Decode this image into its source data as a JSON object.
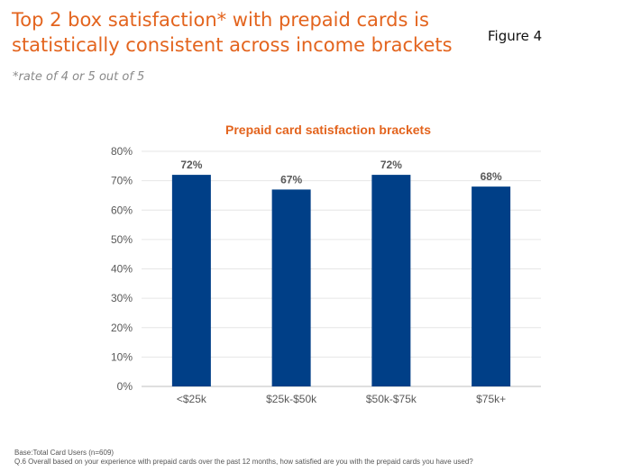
{
  "header": {
    "title": "Top 2 box satisfaction* with prepaid cards is statistically consistent across income brackets",
    "figure_label": "Figure 4",
    "note": "*rate of 4 or 5 out of 5"
  },
  "chart_data": {
    "type": "bar",
    "title": "Prepaid card satisfaction brackets",
    "categories": [
      "<$25k",
      "$25k-$50k",
      "$50k-$75k",
      "$75k+"
    ],
    "values": [
      72,
      67,
      72,
      68
    ],
    "data_labels": [
      "72%",
      "67%",
      "72%",
      "68%"
    ],
    "ylim": [
      0,
      80
    ],
    "yticks": [
      0,
      10,
      20,
      30,
      40,
      50,
      60,
      70,
      80
    ],
    "ytick_labels": [
      "0%",
      "10%",
      "20%",
      "30%",
      "40%",
      "50%",
      "60%",
      "70%",
      "80%"
    ],
    "xlabel": "",
    "ylabel": "",
    "grid": true,
    "bar_color": "#003f87",
    "title_color": "#e3641e"
  },
  "footer": {
    "base": "Base:Total Card Users (n=609)",
    "question": "Q.6 Overall based on your experience with prepaid cards over the past 12 months, how satisfied are you with the prepaid cards you have used?"
  }
}
